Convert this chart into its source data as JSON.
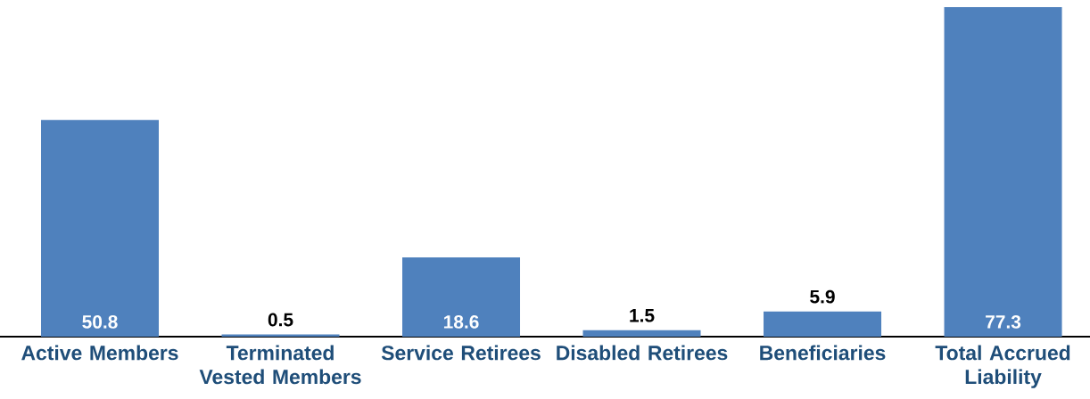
{
  "chart_data": {
    "type": "bar",
    "categories": [
      "Active Members",
      "Terminated Vested Members",
      "Service Retirees",
      "Disabled Retirees",
      "Beneficiaries",
      "Total Accrued Liability"
    ],
    "values": [
      50.8,
      0.5,
      18.6,
      1.5,
      5.9,
      77.3
    ],
    "color": "#4f81bd",
    "data_labels": true
  }
}
